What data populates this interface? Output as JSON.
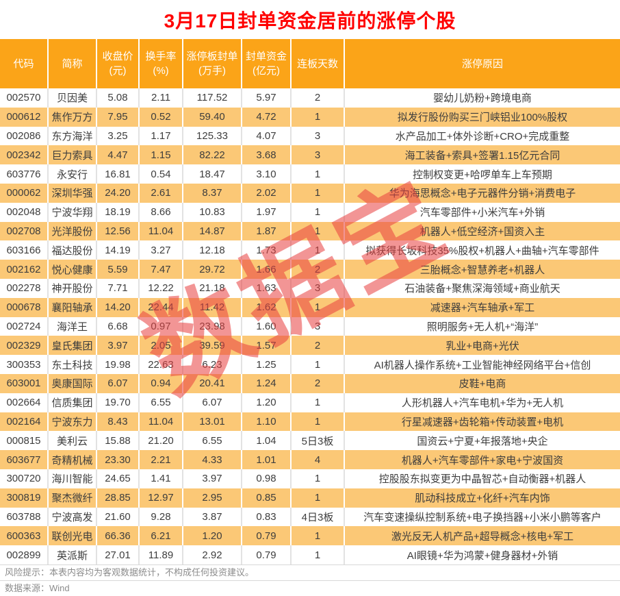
{
  "title": "3月17日封单资金居前的涨停个股",
  "watermark": {
    "text": "数据宝"
  },
  "colors": {
    "title_red": "#FF0000",
    "header_bg": "#FBA418",
    "stripe_bg": "#FBC876",
    "watermark_red": "#E94040",
    "footer_text": "#8C8C8C"
  },
  "chart_data": {
    "type": "table",
    "columns": [
      {
        "key": "code",
        "line1": "代码",
        "line2": ""
      },
      {
        "key": "name",
        "line1": "简称",
        "line2": ""
      },
      {
        "key": "close-price",
        "line1": "收盘价",
        "line2": "(元)"
      },
      {
        "key": "turnover-rate",
        "line1": "换手率",
        "line2": "(%)"
      },
      {
        "key": "seal-volume",
        "line1": "涨停板封单",
        "line2": "(万手)"
      },
      {
        "key": "seal-funds",
        "line1": "封单资金",
        "line2": "(亿元)"
      },
      {
        "key": "board-days",
        "line1": "连板天数",
        "line2": ""
      },
      {
        "key": "reason",
        "line1": "涨停原因",
        "line2": ""
      }
    ],
    "rows": [
      [
        "002570",
        "贝因美",
        "5.08",
        "2.11",
        "117.52",
        "5.97",
        "2",
        "婴幼儿奶粉+跨境电商"
      ],
      [
        "000612",
        "焦作万方",
        "7.95",
        "0.52",
        "59.40",
        "4.72",
        "1",
        "拟发行股份购买三门峡铝业100%股权"
      ],
      [
        "002086",
        "东方海洋",
        "3.25",
        "1.17",
        "125.33",
        "4.07",
        "3",
        "水产品加工+体外诊断+CRO+完成重整"
      ],
      [
        "002342",
        "巨力索具",
        "4.47",
        "1.15",
        "82.22",
        "3.68",
        "3",
        "海工装备+索具+签署1.15亿元合同"
      ],
      [
        "603776",
        "永安行",
        "16.81",
        "0.54",
        "18.47",
        "3.10",
        "1",
        "控制权变更+哈啰单车上车预期"
      ],
      [
        "000062",
        "深圳华强",
        "24.20",
        "2.61",
        "8.37",
        "2.02",
        "1",
        "华为海思概念+电子元器件分销+消费电子"
      ],
      [
        "002048",
        "宁波华翔",
        "18.19",
        "8.66",
        "10.83",
        "1.97",
        "1",
        "汽车零部件+小米汽车+外销"
      ],
      [
        "002708",
        "光洋股份",
        "12.56",
        "11.04",
        "14.87",
        "1.87",
        "1",
        "机器人+低空经济+国资入主"
      ],
      [
        "603166",
        "福达股份",
        "14.19",
        "3.27",
        "12.18",
        "1.73",
        "1",
        "拟获得长坂科技35%股权+机器人+曲轴+汽车零部件"
      ],
      [
        "002162",
        "悦心健康",
        "5.59",
        "7.47",
        "29.72",
        "1.66",
        "2",
        "三胎概念+智慧养老+机器人"
      ],
      [
        "002278",
        "神开股份",
        "7.71",
        "12.22",
        "21.18",
        "1.63",
        "3",
        "石油装备+聚焦深海领域+商业航天"
      ],
      [
        "000678",
        "襄阳轴承",
        "14.20",
        "22.44",
        "11.42",
        "1.62",
        "1",
        "减速器+汽车轴承+军工"
      ],
      [
        "002724",
        "海洋王",
        "6.68",
        "0.97",
        "23.98",
        "1.60",
        "3",
        "照明服务+无人机+“海洋”"
      ],
      [
        "002329",
        "皇氏集团",
        "3.97",
        "2.05",
        "39.59",
        "1.57",
        "2",
        "乳业+电商+光伏"
      ],
      [
        "300353",
        "东土科技",
        "19.98",
        "22.63",
        "6.23",
        "1.25",
        "1",
        "AI机器人操作系统+工业智能神经网络平台+信创"
      ],
      [
        "603001",
        "奥康国际",
        "6.07",
        "0.94",
        "20.41",
        "1.24",
        "2",
        "皮鞋+电商"
      ],
      [
        "002664",
        "信质集团",
        "19.70",
        "6.55",
        "6.07",
        "1.20",
        "1",
        "人形机器人+汽车电机+华为+无人机"
      ],
      [
        "002164",
        "宁波东力",
        "8.43",
        "11.04",
        "13.01",
        "1.10",
        "1",
        "行星减速器+齿轮箱+传动装置+电机"
      ],
      [
        "000815",
        "美利云",
        "15.88",
        "21.20",
        "6.55",
        "1.04",
        "5日3板",
        "国资云+宁夏+年报落地+央企"
      ],
      [
        "603677",
        "奇精机械",
        "23.30",
        "2.21",
        "4.33",
        "1.01",
        "4",
        "机器人+汽车零部件+家电+宁波国资"
      ],
      [
        "300720",
        "海川智能",
        "24.65",
        "1.41",
        "3.97",
        "0.98",
        "1",
        "控股股东拟变更为中晶智芯+自动衡器+机器人"
      ],
      [
        "300819",
        "聚杰微纤",
        "28.85",
        "12.97",
        "2.95",
        "0.85",
        "1",
        "肌动科技成立+化纤+汽车内饰"
      ],
      [
        "603788",
        "宁波高发",
        "21.60",
        "9.28",
        "3.87",
        "0.83",
        "4日3板",
        "汽车变速操纵控制系统+电子换挡器+小米小鹏等客户"
      ],
      [
        "600363",
        "联创光电",
        "66.36",
        "6.21",
        "1.20",
        "0.79",
        "1",
        "激光反无人机产品+超导概念+核电+军工"
      ],
      [
        "002899",
        "英派斯",
        "27.01",
        "11.89",
        "2.92",
        "0.79",
        "1",
        "AI眼镜+华为鸿蒙+健身器材+外销"
      ]
    ]
  },
  "footer": {
    "risk": "风险提示：本表内容均为客观数据统计，不构成任何投资建议。",
    "source": "数据来源：Wind"
  }
}
